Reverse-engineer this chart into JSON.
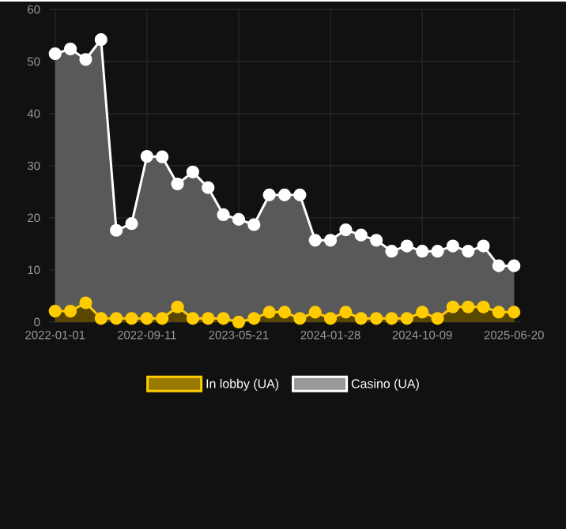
{
  "chart_data": {
    "type": "area",
    "categories": [
      "2022-01-01",
      null,
      null,
      null,
      null,
      null,
      "2022-09-11",
      null,
      null,
      null,
      null,
      null,
      "2023-05-21",
      null,
      null,
      null,
      null,
      null,
      "2024-01-28",
      null,
      null,
      null,
      null,
      null,
      "2024-10-09",
      null,
      null,
      null,
      null,
      null,
      "2025-06-20"
    ],
    "series": [
      {
        "name": "In lobby (UA)",
        "color": "#ffcc00",
        "values": [
          2.1,
          2.1,
          3.7,
          0.7,
          0.7,
          0.7,
          0.7,
          0.7,
          2.9,
          0.7,
          0.7,
          0.7,
          0,
          0.7,
          1.9,
          1.9,
          0.7,
          1.9,
          0.7,
          1.9,
          0.7,
          0.7,
          0.7,
          0.7,
          1.9,
          0.7,
          2.9,
          2.9,
          2.9,
          1.9,
          1.9
        ]
      },
      {
        "name": "Casino (UA)",
        "color": "#ffffff",
        "values": [
          51.5,
          52.4,
          50.4,
          54.2,
          17.6,
          18.9,
          31.8,
          31.7,
          26.5,
          28.8,
          25.8,
          20.6,
          19.7,
          18.7,
          24.4,
          24.4,
          24.4,
          15.7,
          15.7,
          17.7,
          16.7,
          15.7,
          13.6,
          14.6,
          13.6,
          13.6,
          14.6,
          13.6,
          14.6,
          10.8,
          10.8
        ]
      }
    ],
    "ylim": [
      0,
      60
    ],
    "yticks": [
      0,
      10,
      20,
      30,
      40,
      50,
      60
    ],
    "grid": true,
    "legend": "bottom",
    "marker": "circle"
  }
}
